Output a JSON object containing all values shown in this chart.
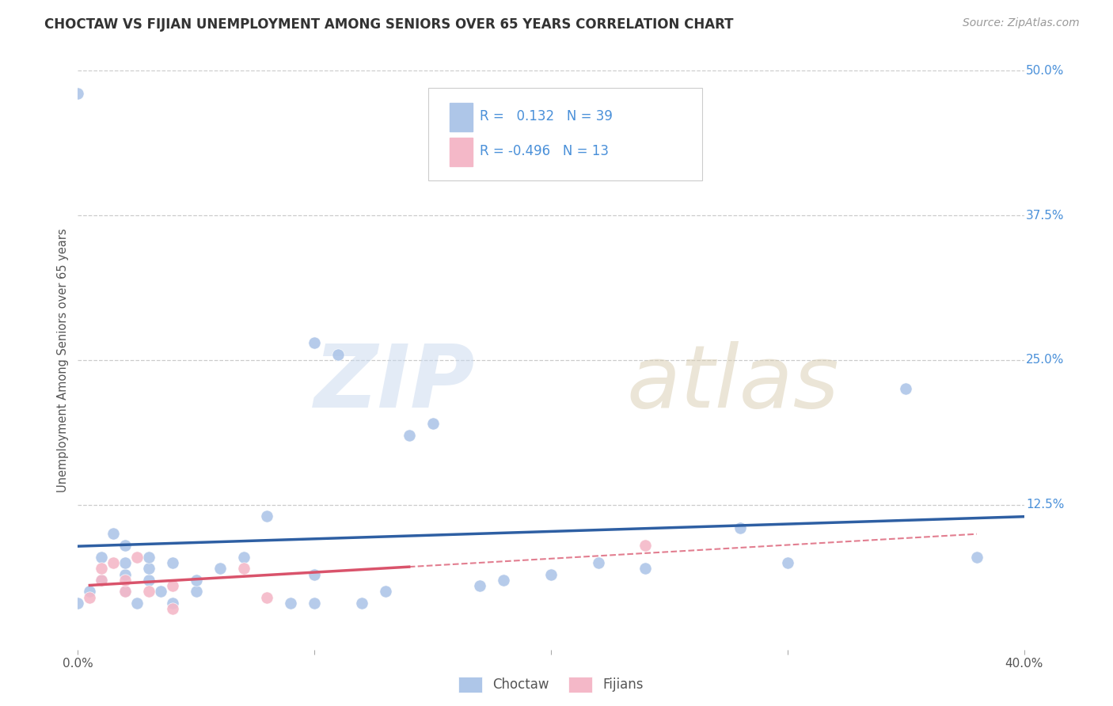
{
  "title": "CHOCTAW VS FIJIAN UNEMPLOYMENT AMONG SENIORS OVER 65 YEARS CORRELATION CHART",
  "source": "Source: ZipAtlas.com",
  "ylabel": "Unemployment Among Seniors over 65 years",
  "xlim": [
    0.0,
    0.4
  ],
  "ylim": [
    0.0,
    0.5
  ],
  "xticks": [
    0.0,
    0.1,
    0.2,
    0.3,
    0.4
  ],
  "xtick_labels": [
    "0.0%",
    "",
    "",
    "",
    "40.0%"
  ],
  "yticks": [
    0.0,
    0.125,
    0.25,
    0.375,
    0.5
  ],
  "ytick_labels": [
    "",
    "12.5%",
    "25.0%",
    "37.5%",
    "50.0%"
  ],
  "background_color": "#ffffff",
  "choctaw_color": "#aec6e8",
  "fijian_color": "#f4b8c8",
  "choctaw_line_color": "#2e5fa3",
  "fijian_line_color": "#d9536b",
  "R_choctaw": 0.132,
  "N_choctaw": 39,
  "R_fijian": -0.496,
  "N_fijian": 13,
  "choctaw_points": [
    [
      0.0,
      0.04
    ],
    [
      0.005,
      0.05
    ],
    [
      0.01,
      0.06
    ],
    [
      0.01,
      0.08
    ],
    [
      0.015,
      0.1
    ],
    [
      0.02,
      0.05
    ],
    [
      0.02,
      0.065
    ],
    [
      0.02,
      0.075
    ],
    [
      0.025,
      0.04
    ],
    [
      0.03,
      0.06
    ],
    [
      0.03,
      0.07
    ],
    [
      0.035,
      0.05
    ],
    [
      0.04,
      0.075
    ],
    [
      0.04,
      0.04
    ],
    [
      0.05,
      0.05
    ],
    [
      0.06,
      0.07
    ],
    [
      0.08,
      0.115
    ],
    [
      0.09,
      0.04
    ],
    [
      0.1,
      0.04
    ],
    [
      0.1,
      0.065
    ],
    [
      0.1,
      0.265
    ],
    [
      0.11,
      0.255
    ],
    [
      0.12,
      0.04
    ],
    [
      0.13,
      0.05
    ],
    [
      0.14,
      0.185
    ],
    [
      0.15,
      0.195
    ],
    [
      0.17,
      0.055
    ],
    [
      0.18,
      0.06
    ],
    [
      0.2,
      0.065
    ],
    [
      0.22,
      0.075
    ],
    [
      0.24,
      0.07
    ],
    [
      0.28,
      0.105
    ],
    [
      0.3,
      0.075
    ],
    [
      0.35,
      0.225
    ],
    [
      0.38,
      0.08
    ],
    [
      0.02,
      0.09
    ],
    [
      0.03,
      0.08
    ],
    [
      0.05,
      0.06
    ],
    [
      0.07,
      0.08
    ]
  ],
  "fijian_points": [
    [
      0.005,
      0.045
    ],
    [
      0.01,
      0.06
    ],
    [
      0.01,
      0.07
    ],
    [
      0.015,
      0.075
    ],
    [
      0.02,
      0.05
    ],
    [
      0.02,
      0.06
    ],
    [
      0.025,
      0.08
    ],
    [
      0.03,
      0.05
    ],
    [
      0.04,
      0.055
    ],
    [
      0.04,
      0.035
    ],
    [
      0.07,
      0.07
    ],
    [
      0.08,
      0.045
    ],
    [
      0.24,
      0.09
    ]
  ],
  "choctaw_outlier": [
    0.0,
    0.48
  ],
  "watermark_zip_color": "#c8d8ee",
  "watermark_atlas_color": "#d8ccb0"
}
